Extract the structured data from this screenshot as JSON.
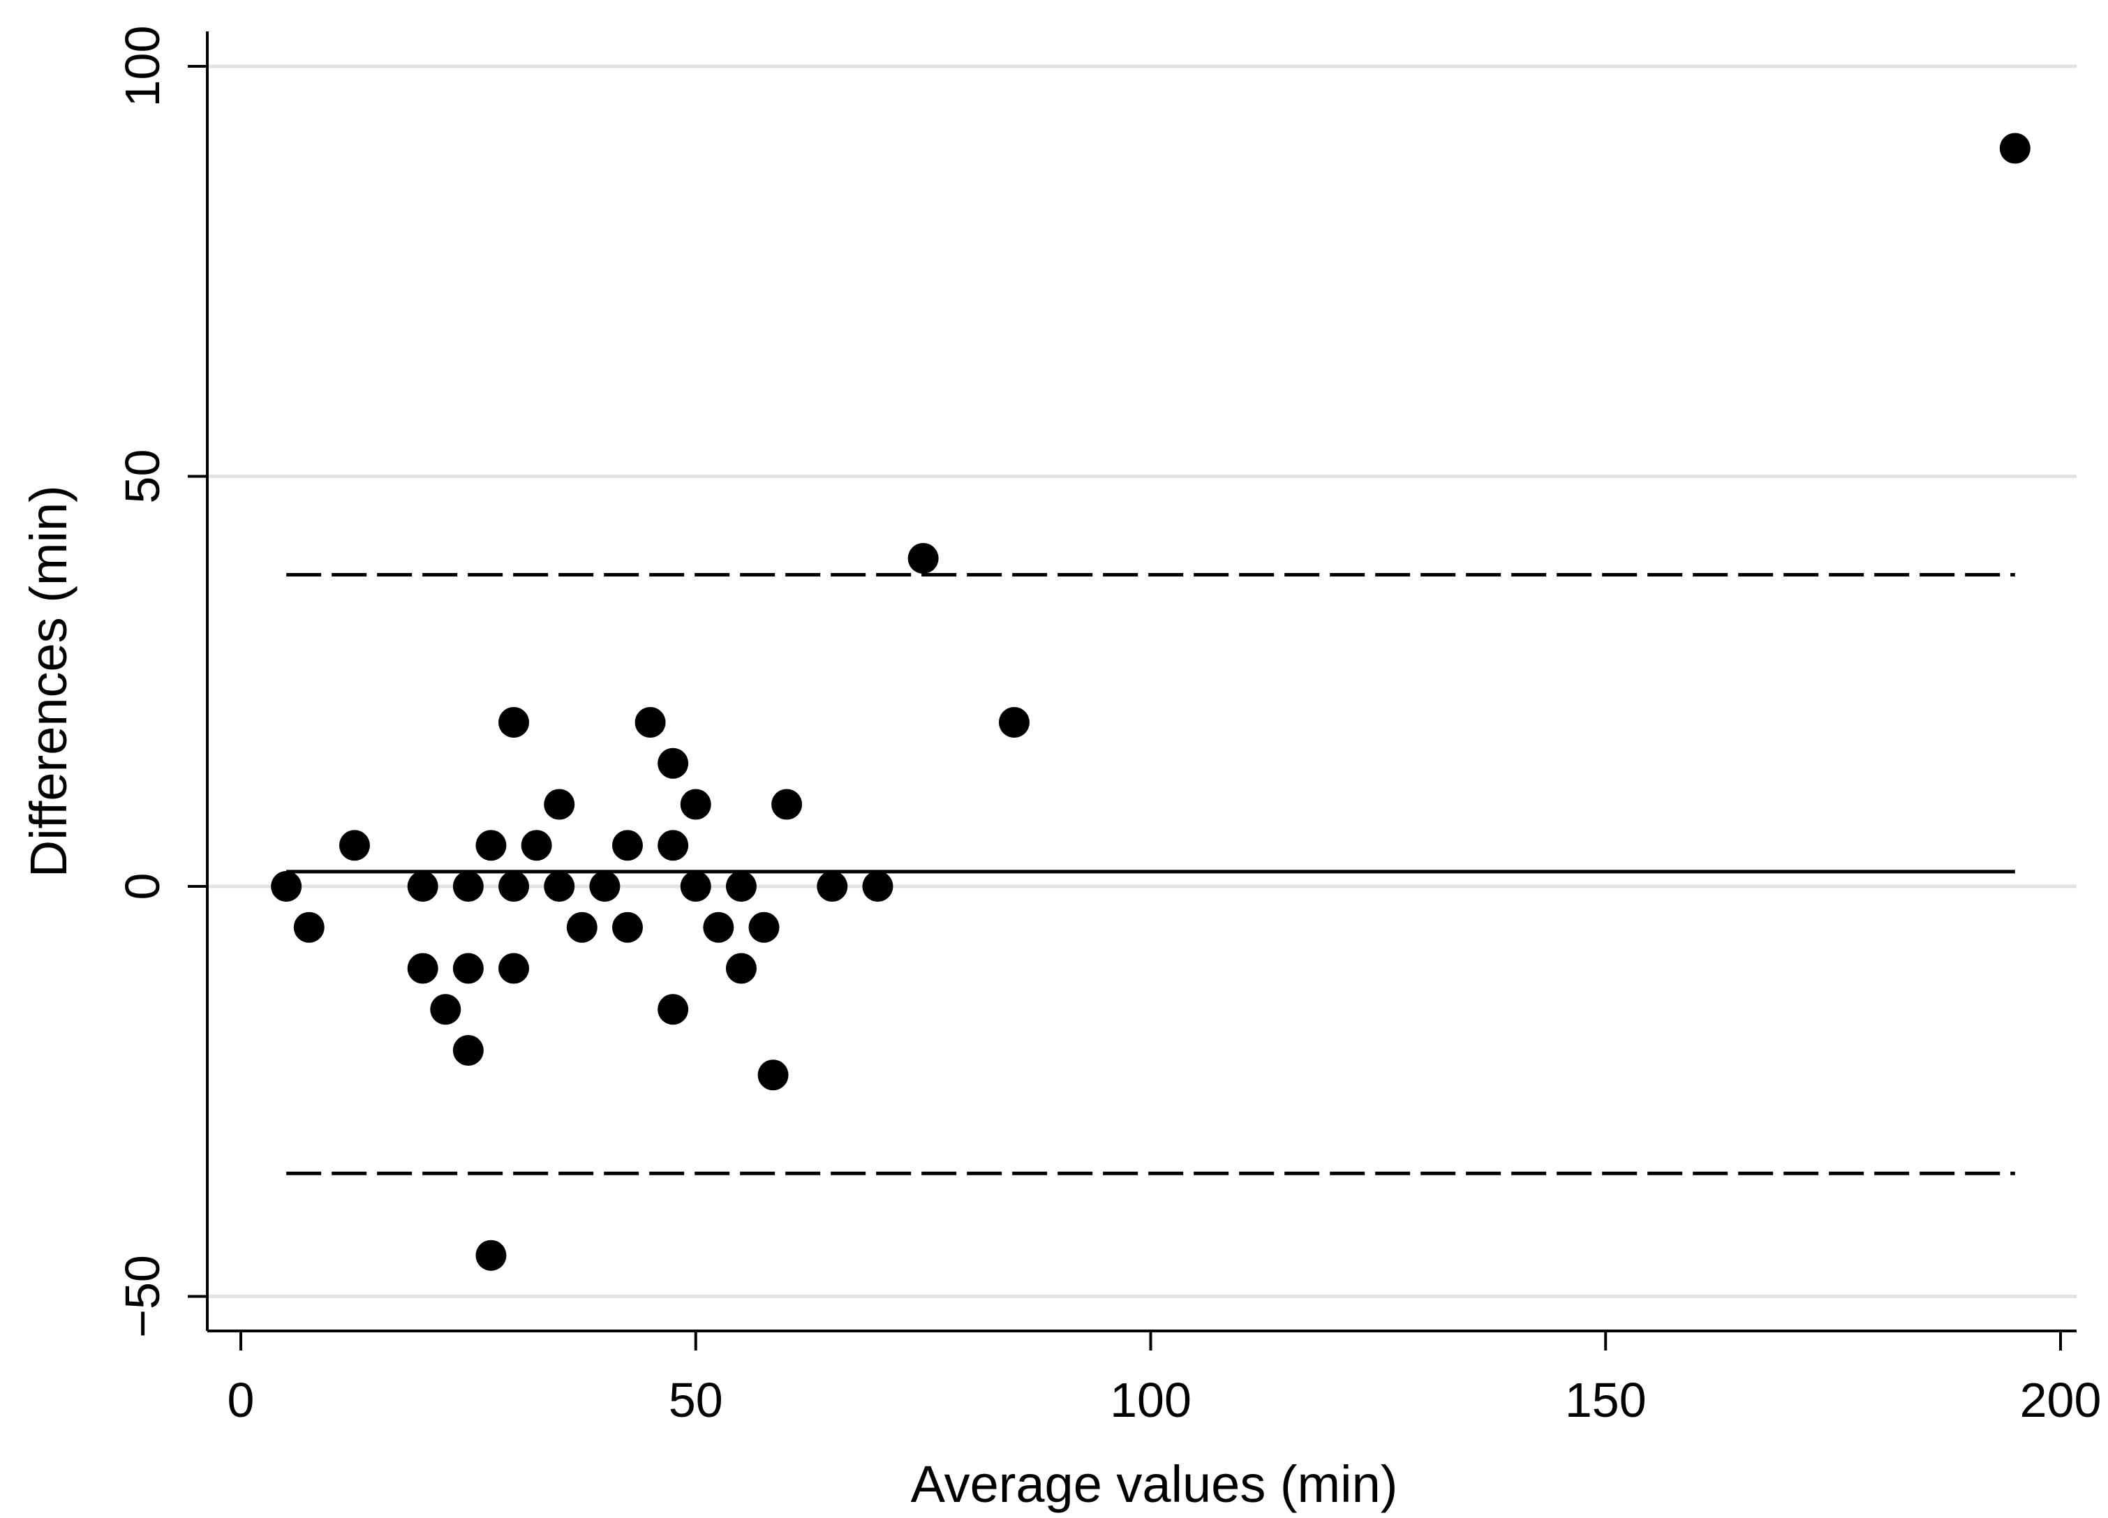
{
  "chart_data": {
    "type": "scatter",
    "title": "",
    "xlabel": "Average values (min)",
    "ylabel": "Differences (min)",
    "xlim": [
      -3.5,
      204
    ],
    "ylim": [
      -54.5,
      104
    ],
    "x_ticks": [
      0,
      50,
      100,
      150,
      200
    ],
    "y_ticks": [
      -50,
      0,
      50,
      100
    ],
    "x_tick_labels": [
      "0",
      "50",
      "100",
      "150",
      "200"
    ],
    "y_tick_labels": [
      "−50",
      "0",
      "50",
      "100"
    ],
    "grid": "horizontal",
    "legend": "none",
    "reference_lines": [
      {
        "name": "mean difference",
        "style": "solid",
        "y": 1.8,
        "x_start": 5,
        "x_end": 195
      },
      {
        "name": "upper limit of agreement",
        "style": "dashed",
        "y": 38,
        "x_start": 5,
        "x_end": 195
      },
      {
        "name": "lower limit of agreement",
        "style": "dashed",
        "y": -35,
        "x_start": 5,
        "x_end": 195
      }
    ],
    "series": [
      {
        "points": [
          {
            "x": 5,
            "y": 0
          },
          {
            "x": 7.5,
            "y": -5
          },
          {
            "x": 12.5,
            "y": 5
          },
          {
            "x": 20,
            "y": 0
          },
          {
            "x": 20,
            "y": -10
          },
          {
            "x": 22.5,
            "y": -15
          },
          {
            "x": 25,
            "y": 0
          },
          {
            "x": 25,
            "y": -10
          },
          {
            "x": 25,
            "y": -20
          },
          {
            "x": 27.5,
            "y": 5
          },
          {
            "x": 27.5,
            "y": -45
          },
          {
            "x": 30,
            "y": 20
          },
          {
            "x": 30,
            "y": 0
          },
          {
            "x": 30,
            "y": -10
          },
          {
            "x": 32.5,
            "y": 5
          },
          {
            "x": 35,
            "y": 10
          },
          {
            "x": 35,
            "y": 0
          },
          {
            "x": 37.5,
            "y": -5
          },
          {
            "x": 40,
            "y": 0
          },
          {
            "x": 42.5,
            "y": 5
          },
          {
            "x": 42.5,
            "y": -5
          },
          {
            "x": 45,
            "y": 20
          },
          {
            "x": 47.5,
            "y": 15
          },
          {
            "x": 47.5,
            "y": 5
          },
          {
            "x": 47.5,
            "y": -15
          },
          {
            "x": 50,
            "y": 10
          },
          {
            "x": 50,
            "y": 0
          },
          {
            "x": 52.5,
            "y": -5
          },
          {
            "x": 55,
            "y": 0
          },
          {
            "x": 55,
            "y": -10
          },
          {
            "x": 57.5,
            "y": -5
          },
          {
            "x": 58.5,
            "y": -23
          },
          {
            "x": 60,
            "y": 10
          },
          {
            "x": 65,
            "y": 0
          },
          {
            "x": 70,
            "y": 0
          },
          {
            "x": 75,
            "y": 40
          },
          {
            "x": 85,
            "y": 20
          },
          {
            "x": 195,
            "y": 90
          }
        ]
      }
    ],
    "colors": {
      "points": "#000000",
      "gridline": "#e3e3e3",
      "axis": "#000000",
      "reference_line": "#000000",
      "background": "#ffffff"
    }
  }
}
